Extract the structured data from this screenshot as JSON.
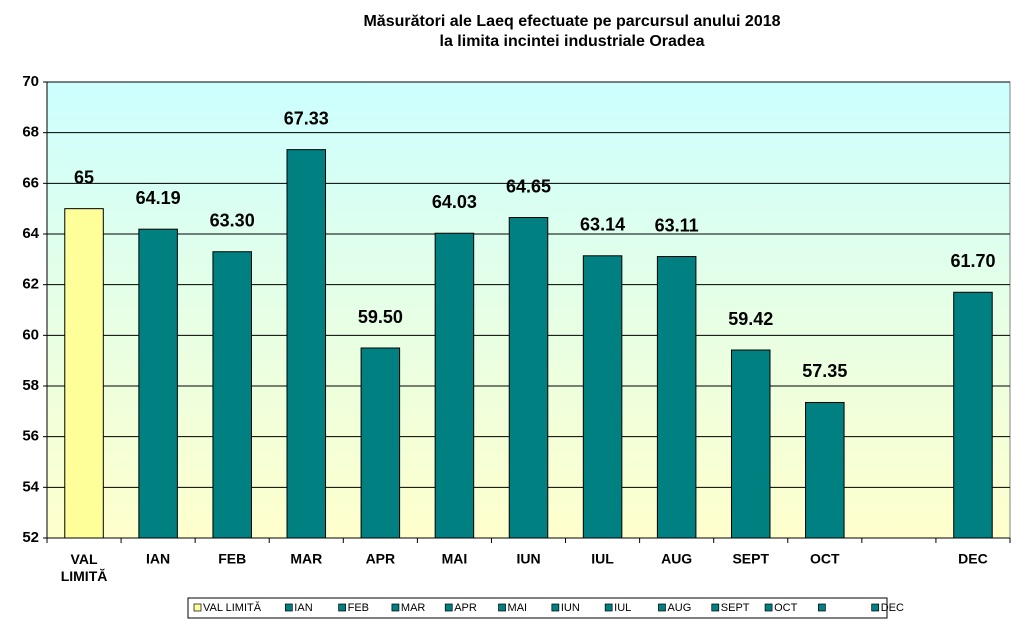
{
  "chart_data": {
    "type": "bar",
    "title": "Măsurători ale Laeq efectuate pe parcursul anului 2018",
    "subtitle": "la limita incintei industriale Oradea",
    "categories": [
      "VAL LIMITĂ",
      "IAN",
      "FEB",
      "MAR",
      "APR",
      "MAI",
      "IUN",
      "IUL",
      "AUG",
      "SEPT",
      "OCT",
      null,
      "DEC"
    ],
    "values": [
      65,
      64.19,
      63.3,
      67.33,
      59.5,
      64.03,
      64.65,
      63.14,
      63.11,
      59.42,
      57.35,
      null,
      61.7
    ],
    "value_labels": [
      "65",
      "64.19",
      "63.30",
      "67.33",
      "59.50",
      "64.03",
      "64.65",
      "63.14",
      "63.11",
      "59.42",
      "57.35",
      null,
      "61.70"
    ],
    "colors": [
      "#ffff99",
      "#008080",
      "#008080",
      "#008080",
      "#008080",
      "#008080",
      "#008080",
      "#008080",
      "#008080",
      "#008080",
      "#008080",
      "#008080",
      "#008080"
    ],
    "ylim": [
      52,
      70
    ],
    "yticks": [
      52,
      54,
      56,
      58,
      60,
      62,
      64,
      66,
      68,
      70
    ],
    "grid": true,
    "legend": "bottom"
  }
}
